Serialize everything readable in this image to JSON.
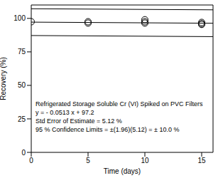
{
  "chart_data": {
    "type": "scatter",
    "x_label": "Time (days)",
    "y_label": "Recovery (%)",
    "xlim": [
      0,
      16
    ],
    "ylim": [
      0,
      110
    ],
    "xticks": [
      0,
      5,
      10,
      15
    ],
    "yticks": [
      0,
      25,
      50,
      75,
      100
    ],
    "grid": false,
    "annotations": [
      "Refrigerated Storage Soluble Cr (VI) Spiked on PVC Filters",
      "y = - 0.0513 x + 97.2",
      "Std Error of Estimate = 5.12 %",
      "95 % Confidence Limits = ±(1.96)(5.12) = ± 10.0 %"
    ],
    "series": [
      {
        "type": "scatter",
        "marker": "circle",
        "color": "#000000",
        "x": [
          0,
          5,
          5,
          10,
          10,
          10,
          15,
          15,
          15
        ],
        "values": [
          97.5,
          96.5,
          97.5,
          99,
          97.5,
          96.5,
          97,
          96,
          95.5
        ]
      },
      {
        "type": "line",
        "line_style": "solid",
        "color": "#000000",
        "x": [
          0,
          16
        ],
        "values": [
          97.2,
          96.38
        ]
      },
      {
        "type": "line",
        "line_style": "solid",
        "color": "#000000",
        "x": [
          0,
          16
        ],
        "values": [
          107.2,
          106.38
        ]
      },
      {
        "type": "line",
        "line_style": "solid",
        "color": "#000000",
        "x": [
          0,
          16
        ],
        "values": [
          87.2,
          86.38
        ]
      }
    ]
  }
}
